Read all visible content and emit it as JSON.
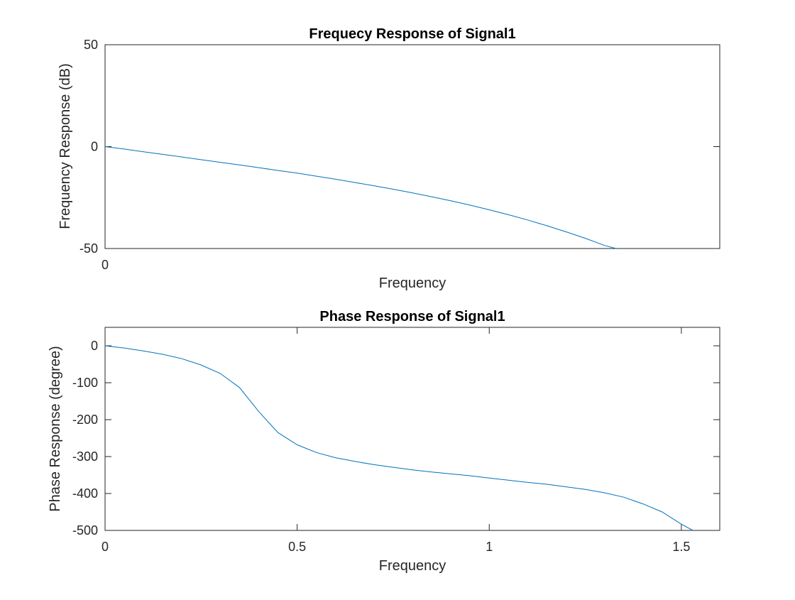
{
  "chart_data": [
    {
      "type": "line",
      "title": "Frequecy Response of Signal1",
      "xlabel": "Frequency",
      "ylabel": "Frequency Response (dB)",
      "xlim": [
        0,
        1.6
      ],
      "ylim": [
        -50,
        50
      ],
      "xticks": [
        0
      ],
      "xtick_labels": [
        "0"
      ],
      "yticks": [
        50,
        0,
        -50
      ],
      "ytick_labels": [
        "50",
        "0",
        "-50"
      ],
      "grid": false,
      "series_color": "#0072BD",
      "series": [
        {
          "x": [
            0,
            0.05,
            0.1,
            0.15,
            0.2,
            0.25,
            0.3,
            0.35,
            0.4,
            0.45,
            0.5,
            0.55,
            0.6,
            0.65,
            0.7,
            0.75,
            0.8,
            0.85,
            0.9,
            0.95,
            1.0,
            1.05,
            1.1,
            1.15,
            1.2,
            1.25,
            1.3,
            1.33
          ],
          "y": [
            0,
            -1.2,
            -2.5,
            -3.8,
            -5.1,
            -6.4,
            -7.7,
            -9.0,
            -10.3,
            -11.7,
            -13.0,
            -14.5,
            -16.0,
            -17.6,
            -19.2,
            -20.9,
            -22.7,
            -24.6,
            -26.6,
            -28.7,
            -31.0,
            -33.4,
            -36.0,
            -38.8,
            -41.8,
            -45.0,
            -48.5,
            -50.0
          ]
        }
      ]
    },
    {
      "type": "line",
      "title": "Phase Response of Signal1",
      "xlabel": "Frequency",
      "ylabel": "Phase Response (degree)",
      "xlim": [
        0,
        1.6
      ],
      "ylim": [
        -500,
        50
      ],
      "xticks": [
        0,
        0.5,
        1,
        1.5
      ],
      "xtick_labels": [
        "0",
        "0.5",
        "1",
        "1.5"
      ],
      "yticks": [
        0,
        -100,
        -200,
        -300,
        -400,
        -500
      ],
      "ytick_labels": [
        "0",
        "-100",
        "-200",
        "-300",
        "-400",
        "-500"
      ],
      "grid": false,
      "series_color": "#0072BD",
      "series": [
        {
          "x": [
            0,
            0.05,
            0.1,
            0.15,
            0.2,
            0.25,
            0.3,
            0.35,
            0.4,
            0.45,
            0.5,
            0.55,
            0.6,
            0.65,
            0.7,
            0.75,
            0.8,
            0.85,
            0.9,
            0.95,
            1.0,
            1.05,
            1.1,
            1.15,
            1.2,
            1.25,
            1.3,
            1.35,
            1.4,
            1.45,
            1.5,
            1.53
          ],
          "y": [
            0,
            -6,
            -14,
            -23,
            -35,
            -52,
            -75,
            -113,
            -178,
            -235,
            -268,
            -289,
            -303,
            -313,
            -322,
            -329,
            -336,
            -342,
            -347,
            -352,
            -358,
            -364,
            -370,
            -375,
            -382,
            -389,
            -398,
            -410,
            -428,
            -450,
            -483,
            -500
          ]
        }
      ]
    }
  ]
}
